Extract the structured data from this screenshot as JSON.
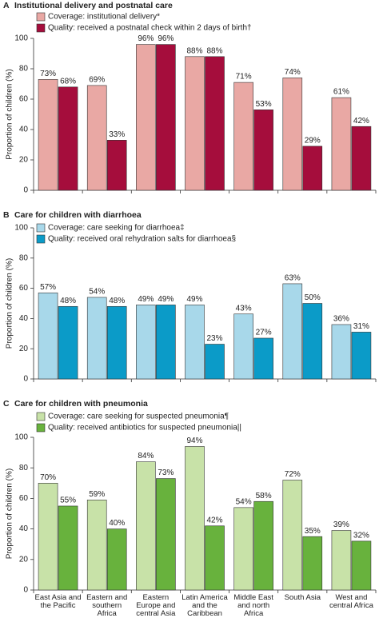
{
  "chart_data": [
    {
      "type": "bar",
      "panel": "A",
      "title": "Institutional delivery and postnatal care",
      "ylabel": "Proportion of children (%)",
      "categories": [
        null,
        null,
        null,
        null,
        null,
        null,
        null
      ],
      "ylim": [
        0,
        100
      ],
      "yticks": [
        0,
        20,
        40,
        60,
        80,
        100
      ],
      "grid": false,
      "series": [
        {
          "name": "Coverage: institutional delivery*",
          "color": "#e9a8a4",
          "values": [
            73,
            69,
            96,
            88,
            71,
            74,
            61
          ],
          "value_labels": [
            "73%",
            "69%",
            "96%",
            "88%",
            "71%",
            "74%",
            "61%"
          ]
        },
        {
          "name": "Quality: received a postnatal check within 2 days of birth†",
          "color": "#a50d3c",
          "values": [
            68,
            33,
            96,
            88,
            53,
            29,
            42
          ],
          "value_labels": [
            "68%",
            "33%",
            "96%",
            "88%",
            "53%",
            "29%",
            "42%"
          ]
        }
      ]
    },
    {
      "type": "bar",
      "panel": "B",
      "title": "Care for children with diarrhoea",
      "ylabel": "Proportion of children (%)",
      "categories": [
        null,
        null,
        null,
        null,
        null,
        null,
        null
      ],
      "ylim": [
        0,
        100
      ],
      "yticks": [
        0,
        20,
        40,
        60,
        80,
        100
      ],
      "grid": false,
      "series": [
        {
          "name": "Coverage: care seeking for diarrhoea‡",
          "color": "#a8d8ea",
          "values": [
            57,
            54,
            49,
            49,
            43,
            63,
            36
          ],
          "value_labels": [
            "57%",
            "54%",
            "49%",
            "49%",
            "43%",
            "63%",
            "36%"
          ]
        },
        {
          "name": "Quality: received oral rehydration salts for diarrhoea§",
          "color": "#0b9bc8",
          "values": [
            48,
            48,
            49,
            23,
            27,
            50,
            31
          ],
          "value_labels": [
            "48%",
            "48%",
            "49%",
            "23%",
            "27%",
            "50%",
            "31%"
          ]
        }
      ]
    },
    {
      "type": "bar",
      "panel": "C",
      "title": "Care for children with pneumonia",
      "ylabel": "Proportion of children (%)",
      "categories": [
        "East Asia and the Pacific",
        "Eastern and southern Africa",
        "Eastern Europe and central Asia",
        "Latin America and the Caribbean",
        "Middle East and north Africa",
        "South Asia",
        "West and central Africa"
      ],
      "ylim": [
        0,
        100
      ],
      "yticks": [
        0,
        20,
        40,
        60,
        80,
        100
      ],
      "grid": false,
      "series": [
        {
          "name": "Coverage: care seeking for suspected pneumonia¶",
          "color": "#c8e2a8",
          "values": [
            70,
            59,
            84,
            94,
            54,
            72,
            39
          ],
          "value_labels": [
            "70%",
            "59%",
            "84%",
            "94%",
            "54%",
            "72%",
            "39%"
          ]
        },
        {
          "name": "Quality: received antibiotics for suspected pneumonia||",
          "color": "#68b23d",
          "values": [
            55,
            40,
            73,
            42,
            58,
            35,
            32
          ],
          "value_labels": [
            "55%",
            "40%",
            "73%",
            "42%",
            "58%",
            "35%",
            "32%"
          ]
        }
      ]
    }
  ]
}
